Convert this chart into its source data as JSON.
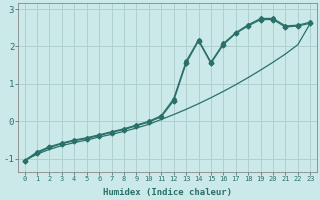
{
  "title": "",
  "xlabel": "Humidex (Indice chaleur)",
  "ylabel": "",
  "bg_color": "#cce9e9",
  "grid_color": "#b0d0d0",
  "line_color": "#2a706a",
  "xlim": [
    -0.5,
    23.5
  ],
  "ylim": [
    -1.35,
    3.15
  ],
  "xticks": [
    0,
    1,
    2,
    3,
    4,
    5,
    6,
    7,
    8,
    9,
    10,
    11,
    12,
    13,
    14,
    15,
    16,
    17,
    18,
    19,
    20,
    21,
    22,
    23
  ],
  "yticks": [
    -1,
    0,
    1,
    2,
    3
  ],
  "line1_x": [
    0,
    1,
    2,
    3,
    4,
    5,
    6,
    7,
    8,
    9,
    10,
    11,
    12,
    13,
    14,
    15,
    16,
    17,
    18,
    19,
    20,
    21,
    22,
    23
  ],
  "line1_y": [
    -1.05,
    -0.85,
    -0.7,
    -0.6,
    -0.52,
    -0.46,
    -0.38,
    -0.3,
    -0.22,
    -0.12,
    -0.02,
    0.12,
    0.55,
    1.55,
    2.15,
    1.55,
    2.05,
    2.35,
    2.55,
    2.72,
    2.72,
    2.52,
    2.55,
    2.62
  ],
  "line2_x": [
    0,
    1,
    2,
    3,
    4,
    5,
    6,
    7,
    8,
    9,
    10,
    11,
    12,
    13,
    14,
    15,
    16,
    17,
    18,
    19,
    20,
    21,
    22,
    23
  ],
  "line2_y": [
    -1.05,
    -0.88,
    -0.75,
    -0.65,
    -0.57,
    -0.5,
    -0.42,
    -0.35,
    -0.27,
    -0.18,
    -0.08,
    0.05,
    0.18,
    0.32,
    0.47,
    0.63,
    0.8,
    0.98,
    1.17,
    1.37,
    1.58,
    1.8,
    2.05,
    2.62
  ],
  "line3_x": [
    0,
    1,
    2,
    3,
    4,
    5,
    6,
    7,
    8,
    9,
    10,
    11,
    12,
    13,
    14,
    15,
    16,
    17,
    18,
    19,
    20,
    21,
    22,
    23
  ],
  "line3_y": [
    -1.05,
    -0.82,
    -0.68,
    -0.58,
    -0.5,
    -0.44,
    -0.36,
    -0.28,
    -0.2,
    -0.1,
    0.0,
    0.15,
    0.6,
    1.6,
    2.18,
    1.58,
    2.08,
    2.37,
    2.58,
    2.75,
    2.75,
    2.55,
    2.57,
    2.65
  ]
}
